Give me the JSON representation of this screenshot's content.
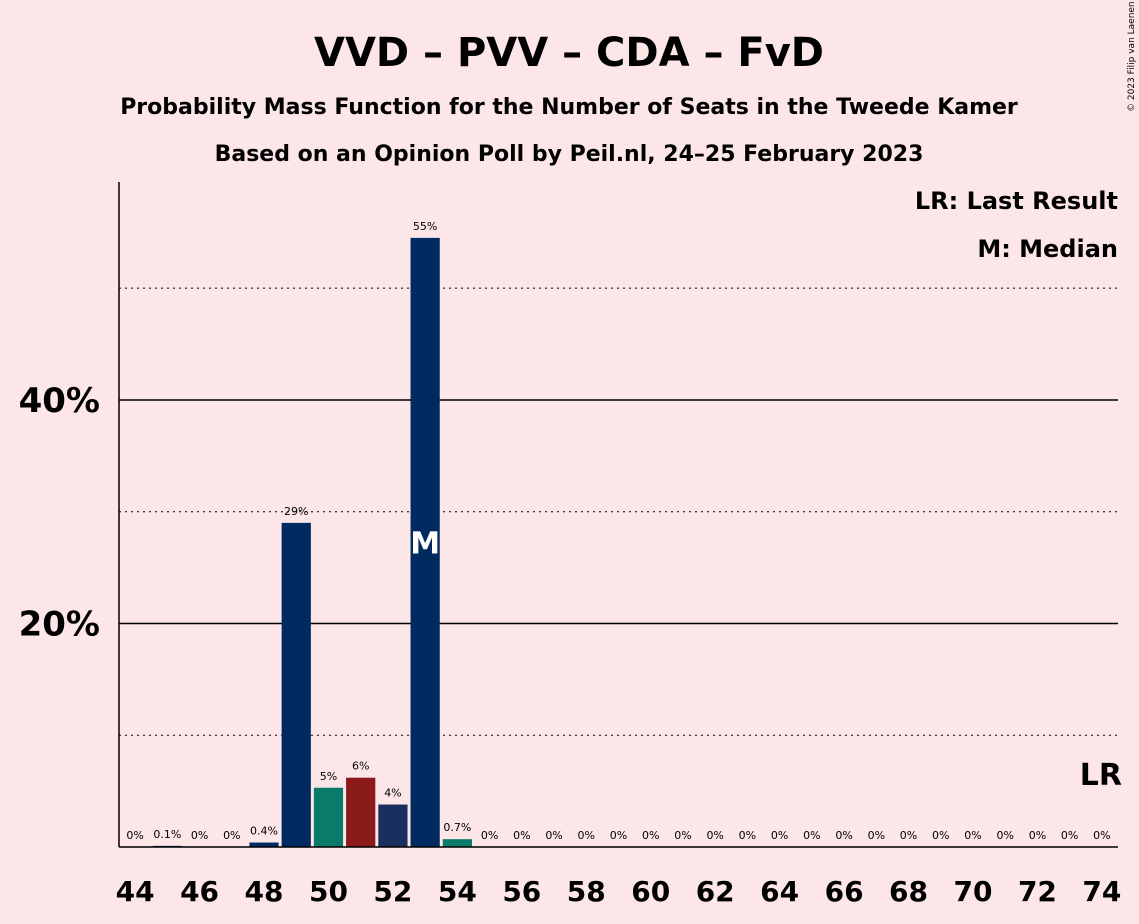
{
  "copyright": "© 2023 Filip van Laenen",
  "colors": {
    "background": "#fce6e8",
    "vvd": "#012a60",
    "pvv": "#0a7a6a",
    "cda": "#8b1a1a",
    "fvd": "#841818",
    "median_label": "#ffffff"
  },
  "chart_data": {
    "type": "bar",
    "title": "VVD – PVV – CDA – FvD",
    "subtitle": "Probability Mass Function for the Number of Seats in the Tweede Kamer",
    "subtitle2": "Based on an Opinion Poll by Peil.nl, 24–25 February 2023",
    "xlabel": "",
    "ylabel": "",
    "ylim": [
      0,
      59.5
    ],
    "grid": true,
    "legend_position": "top-right",
    "legend": [
      "LR: Last Result",
      "M: Median"
    ],
    "y_ticks": [
      {
        "value": 20,
        "label": "20%"
      },
      {
        "value": 40,
        "label": "40%"
      }
    ],
    "x_ticks": [
      "44",
      "46",
      "48",
      "50",
      "52",
      "54",
      "56",
      "58",
      "60",
      "62",
      "64",
      "66",
      "68",
      "70",
      "72",
      "74"
    ],
    "seats": [
      44,
      45,
      46,
      47,
      48,
      49,
      50,
      51,
      52,
      53,
      54,
      55,
      56,
      57,
      58,
      59,
      60,
      61,
      62,
      63,
      64,
      65,
      66,
      67,
      68,
      69,
      70,
      71,
      72,
      73,
      74
    ],
    "values": [
      0,
      0.1,
      0,
      0,
      0.4,
      29,
      5.3,
      6.2,
      3.8,
      54.5,
      0.7,
      0,
      0,
      0,
      0,
      0,
      0,
      0,
      0,
      0,
      0,
      0,
      0,
      0,
      0,
      0,
      0,
      0,
      0,
      0,
      0
    ],
    "labels": [
      "0%",
      "0.1%",
      "0%",
      "0%",
      "0.4%",
      "29%",
      "5%",
      "6%",
      "4%",
      "55%",
      "0.7%",
      "0%",
      "0%",
      "0%",
      "0%",
      "0%",
      "0%",
      "0%",
      "0%",
      "0%",
      "0%",
      "0%",
      "0%",
      "0%",
      "0%",
      "0%",
      "0%",
      "0%",
      "0%",
      "0%",
      "0%"
    ],
    "bar_colors": [
      "#012a60",
      "#012a60",
      "#012a60",
      "#012a60",
      "#012a60",
      "#012a60",
      "#0a7a6a",
      "#8b1a1a",
      "#1a2f5e",
      "#012a60",
      "#0a7a6a",
      "#012a60",
      "#012a60",
      "#012a60",
      "#012a60",
      "#012a60",
      "#012a60",
      "#012a60",
      "#012a60",
      "#012a60",
      "#012a60",
      "#012a60",
      "#012a60",
      "#012a60",
      "#012a60",
      "#012a60",
      "#012a60",
      "#012a60",
      "#012a60",
      "#012a60",
      "#012a60"
    ],
    "median_seat": 53,
    "median_label": "M",
    "last_result_seat": 74,
    "last_result_label": "LR"
  }
}
